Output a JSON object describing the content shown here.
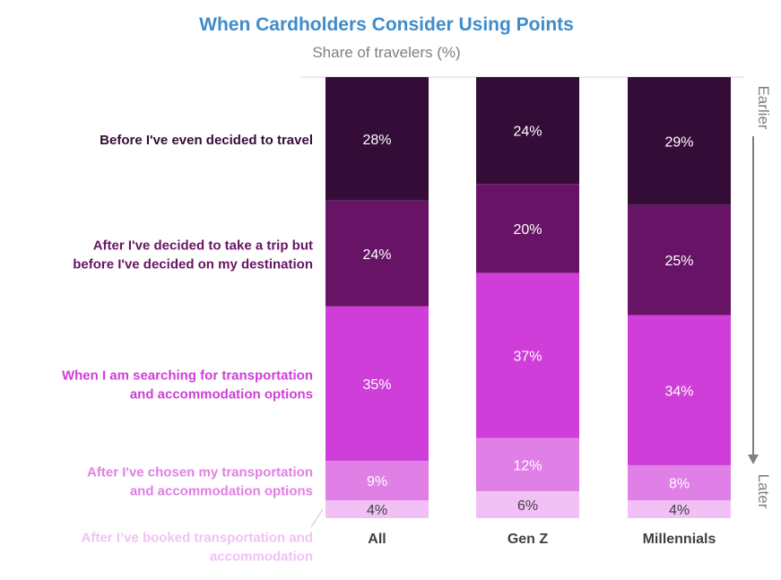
{
  "chart_data": {
    "type": "bar",
    "stacked": true,
    "title": "When Cardholders Consider Using Points",
    "subtitle": "Share of travelers (%)",
    "categories": [
      "All",
      "Gen Z",
      "Millennials"
    ],
    "series": [
      {
        "name": "Before I've even decided to travel",
        "values": [
          28,
          24,
          29
        ],
        "color": "#330d38"
      },
      {
        "name": "After I've decided to take a trip but before I've decided on my destination",
        "values": [
          24,
          20,
          25
        ],
        "color": "#681466"
      },
      {
        "name": "When I am searching for transportation and accommodation options",
        "values": [
          35,
          37,
          34
        ],
        "color": "#cf3ed9"
      },
      {
        "name": "After I've chosen my transportation and accommodation options",
        "values": [
          9,
          12,
          8
        ],
        "color": "#e07fe6"
      },
      {
        "name": "After I've booked transportation and accommodation",
        "values": [
          4,
          6,
          4
        ],
        "color": "#f1c1f5"
      }
    ],
    "series_label_lines": [
      [
        "Before I've even decided to travel"
      ],
      [
        "After I've decided to take a trip but",
        "before I've decided on my destination"
      ],
      [
        "When I am searching for transportation",
        "and accommodation options"
      ],
      [
        "After I've chosen my transportation",
        "and accommodation options"
      ],
      [
        "After I’ve booked transportation and",
        "accommodation"
      ]
    ],
    "series_label_colors": [
      "#330d38",
      "#681466",
      "#cf3ed9",
      "#e07fe6",
      "#f1c1f5"
    ],
    "data_labels": [
      [
        "28%",
        "24%",
        "35%",
        "9%",
        "4%"
      ],
      [
        "24%",
        "20%",
        "37%",
        "12%",
        "6%"
      ],
      [
        "29%",
        "25%",
        "34%",
        "8%",
        "4%"
      ]
    ],
    "arrow_labels": {
      "top": "Earlier",
      "bottom": "Later"
    },
    "colors": {
      "title": "#3f8ccb",
      "subtitle": "#7f7f7f",
      "category": "#404040",
      "arrow": "#7f7f7f",
      "value_text": "#ffffff",
      "value_text_light": "#404040"
    }
  }
}
